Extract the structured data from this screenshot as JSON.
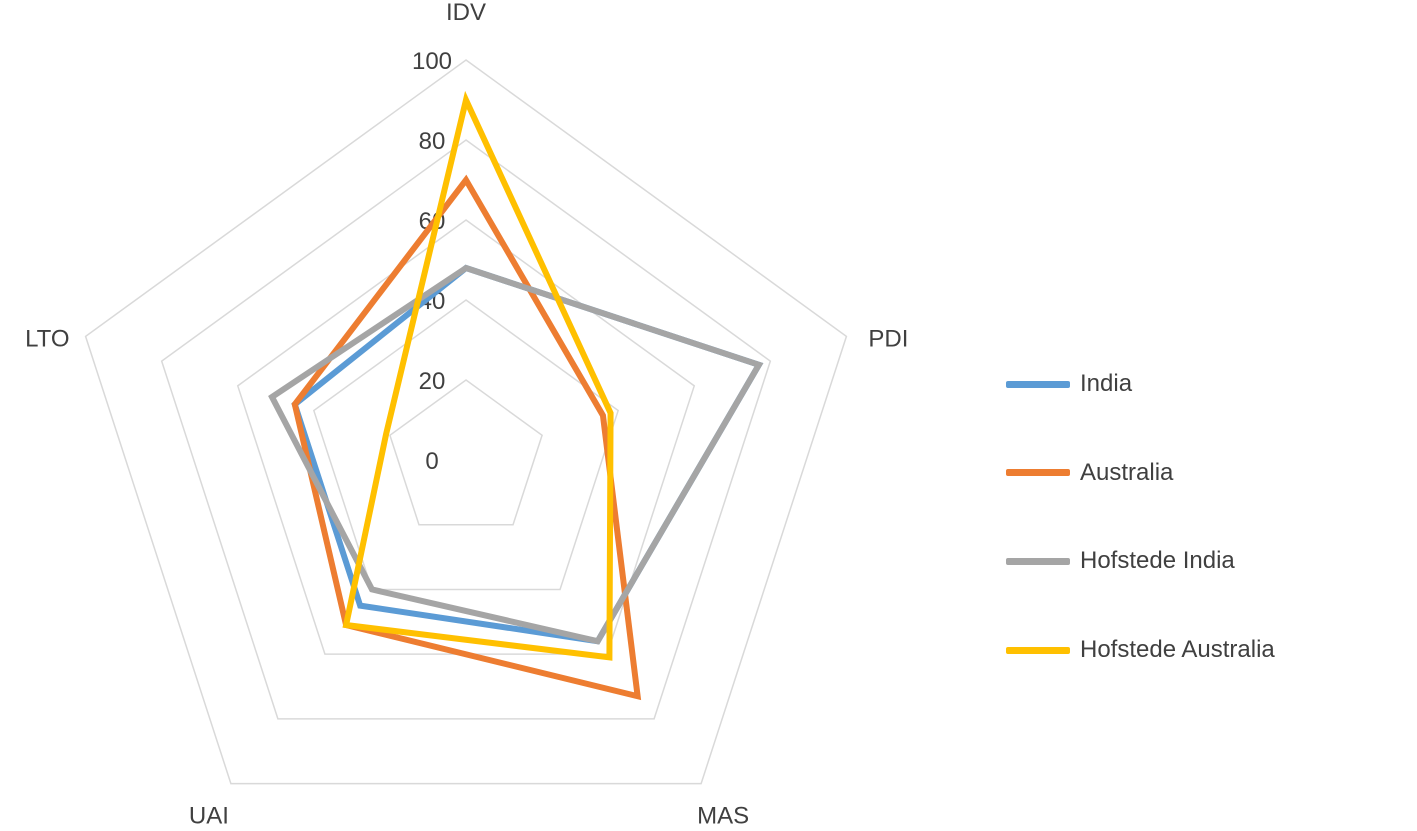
{
  "chart_data": {
    "type": "radar",
    "axes": [
      "IDV",
      "PDI",
      "MAS",
      "UAI",
      "LTO"
    ],
    "range": [
      0,
      100
    ],
    "tick_values": [
      0,
      20,
      40,
      60,
      80,
      100
    ],
    "tick_labels": [
      "0",
      "20",
      "40",
      "60",
      "80",
      "100"
    ],
    "grid": true,
    "legend_position": "right",
    "series": [
      {
        "name": "India",
        "color": "#5B9BD5",
        "values": [
          48,
          77,
          56,
          45,
          45
        ]
      },
      {
        "name": "Australia",
        "color": "#ED7D31",
        "values": [
          70,
          36,
          73,
          51,
          45
        ]
      },
      {
        "name": "Hofstede India",
        "color": "#A5A5A5",
        "values": [
          48,
          77,
          56,
          40,
          51
        ]
      },
      {
        "name": "Hofstede Australia",
        "color": "#FFC000",
        "values": [
          90,
          38,
          61,
          51,
          21
        ]
      }
    ]
  }
}
